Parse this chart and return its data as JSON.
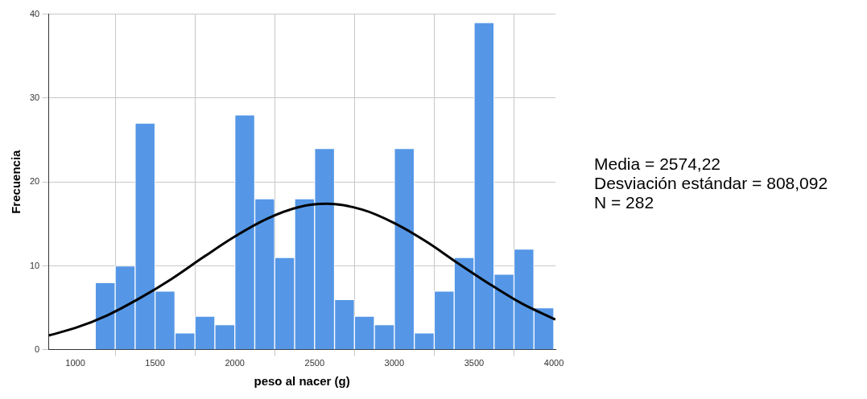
{
  "chart_data": {
    "type": "histogram",
    "xlabel": "peso al nacer (g)",
    "ylabel": "Frecuencia",
    "bins": [
      1125,
      1250,
      1375,
      1500,
      1625,
      1750,
      1875,
      2000,
      2125,
      2250,
      2375,
      2500,
      2625,
      2750,
      2875,
      3000,
      3125,
      3250,
      3375,
      3500,
      3625,
      3750,
      3875,
      4000
    ],
    "values": [
      8,
      10,
      27,
      7,
      2,
      4,
      3,
      28,
      18,
      11,
      18,
      24,
      6,
      4,
      3,
      24,
      2,
      7,
      11,
      39,
      9,
      12,
      5
    ],
    "color": "#5597e6",
    "series": [
      {
        "type": "line",
        "color": "#000000",
        "x": [
          832,
          1000,
          1200,
          1400,
          1600,
          1800,
          2000,
          2200,
          2400,
          2574,
          2800,
          3000,
          3200,
          3400,
          3600,
          3800,
          4010
        ],
        "values": [
          1.7,
          2.6,
          4.1,
          6.1,
          8.4,
          11.0,
          13.5,
          15.6,
          17.0,
          17.4,
          16.7,
          15.1,
          12.9,
          10.3,
          7.8,
          5.5,
          3.6
        ]
      }
    ],
    "xlim": [
      832,
      4010
    ],
    "xticks": [
      1000,
      1500,
      2000,
      2500,
      3000,
      3500,
      4000
    ],
    "ylim": [
      0,
      40
    ],
    "yticks": [
      0,
      10,
      20,
      30,
      40
    ],
    "grid": true,
    "legend": false,
    "marker": "none",
    "line_style": "solid",
    "annotations": [
      "Media = 2574,22",
      "Desviación estándar = 808,092",
      "N = 282"
    ]
  }
}
